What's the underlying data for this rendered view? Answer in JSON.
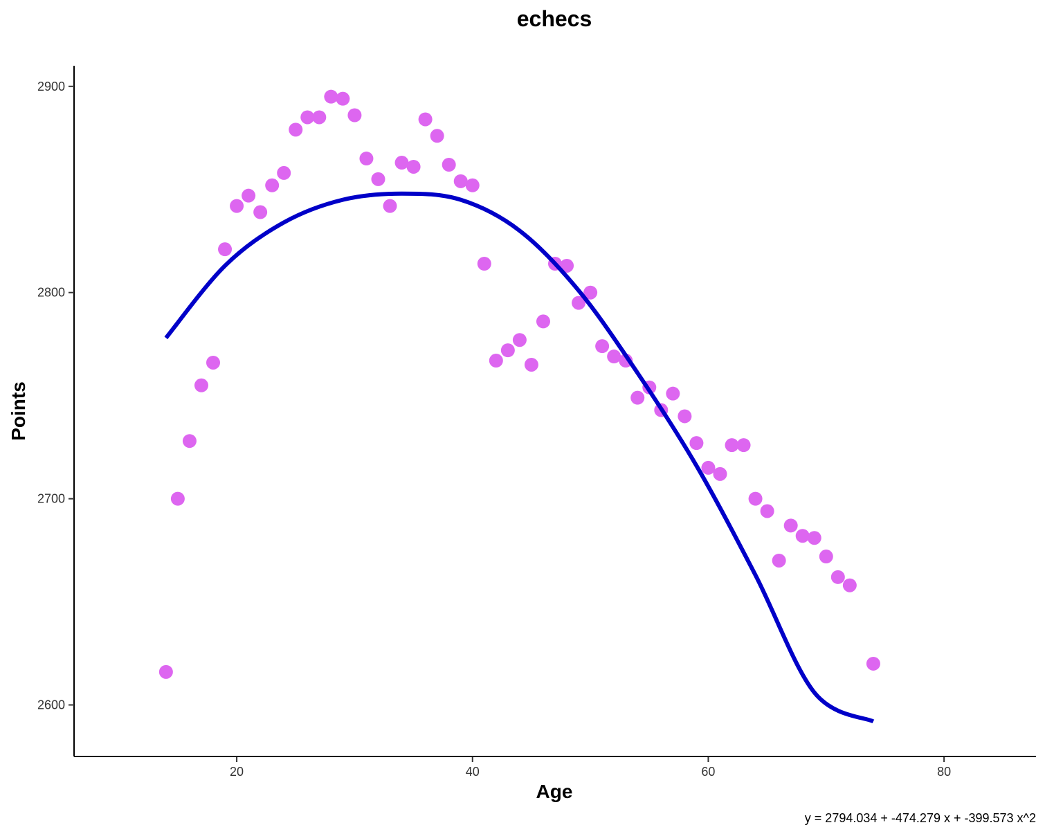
{
  "chart_data": {
    "type": "scatter",
    "title": "echecs",
    "xlabel": "Age",
    "ylabel": "Points",
    "caption": "y = 2794.034 + -474.279 x + -399.573 x^2",
    "xlim": [
      6.2,
      87.8
    ],
    "ylim": [
      2575,
      2910
    ],
    "xticks": [
      20,
      40,
      60,
      80
    ],
    "yticks": [
      2600,
      2700,
      2800,
      2900
    ],
    "grid": false,
    "legend": "none",
    "point_color": "#DD66F0",
    "line_color": "#0000C8",
    "series": [
      {
        "kind": "points",
        "x": [
          14,
          15,
          16,
          17,
          18,
          19,
          20,
          21,
          22,
          23,
          24,
          25,
          26,
          27,
          28,
          29,
          30,
          31,
          32,
          33,
          34,
          35,
          36,
          37,
          38,
          39,
          40,
          41,
          42,
          43,
          44,
          45,
          46,
          47,
          48,
          49,
          50,
          51,
          52,
          53,
          54,
          55,
          56,
          57,
          58,
          59,
          60,
          61,
          62,
          63,
          64,
          65,
          66,
          67,
          68,
          69,
          70,
          71,
          72,
          74
        ],
        "y": [
          2616,
          2700,
          2728,
          2755,
          2766,
          2821,
          2842,
          2847,
          2839,
          2852,
          2858,
          2879,
          2885,
          2885,
          2895,
          2894,
          2886,
          2865,
          2855,
          2842,
          2863,
          2861,
          2884,
          2876,
          2862,
          2854,
          2852,
          2814,
          2767,
          2772,
          2777,
          2765,
          2786,
          2814,
          2813,
          2795,
          2800,
          2774,
          2769,
          2767,
          2749,
          2754,
          2743,
          2751,
          2740,
          2727,
          2715,
          2712,
          2726,
          2726,
          2700,
          2694,
          2670,
          2687,
          2682,
          2681,
          2672,
          2662,
          2658,
          2620
        ]
      },
      {
        "kind": "fitted-curve",
        "x": [
          14,
          19,
          24,
          29,
          34,
          39,
          44,
          49,
          54,
          59,
          64,
          69,
          74
        ],
        "y": [
          2778,
          2813,
          2834,
          2845,
          2848,
          2845,
          2830,
          2801,
          2761,
          2716,
          2663,
          2606,
          2592
        ]
      }
    ]
  }
}
